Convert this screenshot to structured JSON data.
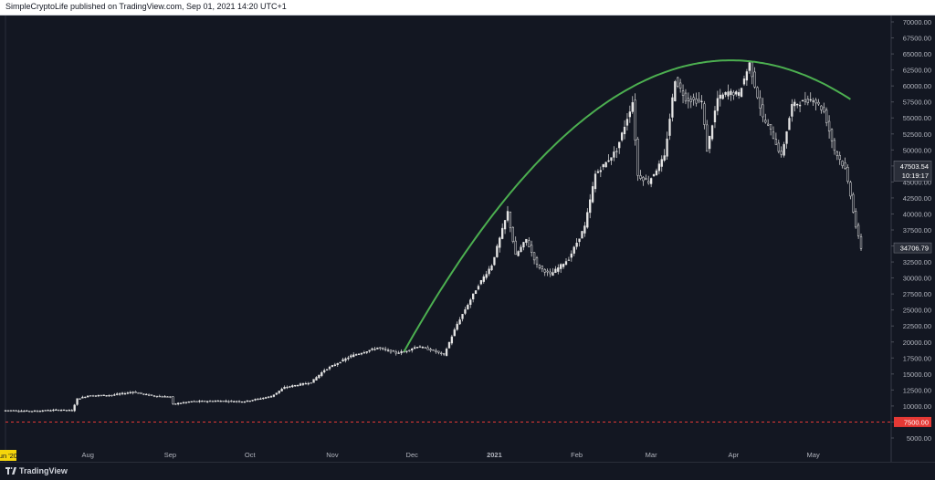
{
  "header": {
    "publish_text": "SimpleCryptoLife published on TradingView.com, Sep 01, 2021 14:20 UTC+1"
  },
  "footer": {
    "brand": "TradingView"
  },
  "colors": {
    "background": "#131722",
    "candle": "#e6e6e6",
    "arc": "#4caf50",
    "support_line": "#e53935",
    "axis_text": "#b2b5be",
    "date_highlight": "#f5d50b"
  },
  "chart_data": {
    "type": "candlestick",
    "ylim": [
      4000,
      71000
    ],
    "y_ticks": [
      "5000.00",
      "7500.00",
      "10000.00",
      "12500.00",
      "15000.00",
      "17500.00",
      "20000.00",
      "22500.00",
      "25000.00",
      "27500.00",
      "30000.00",
      "32500.00",
      "35000.00",
      "37500.00",
      "40000.00",
      "42500.00",
      "45000.00",
      "47500.00",
      "50000.00",
      "52500.00",
      "55000.00",
      "57500.00",
      "60000.00",
      "62500.00",
      "65000.00",
      "67500.00",
      "70000.00"
    ],
    "x_ticks": [
      {
        "label": "Jun '20",
        "day": 0,
        "highlight": true
      },
      {
        "label": "Aug",
        "day": 31
      },
      {
        "label": "Sep",
        "day": 62
      },
      {
        "label": "Oct",
        "day": 92
      },
      {
        "label": "Nov",
        "day": 123
      },
      {
        "label": "Dec",
        "day": 153
      },
      {
        "label": "2021",
        "day": 184,
        "bold": true
      },
      {
        "label": "Feb",
        "day": 215
      },
      {
        "label": "Mar",
        "day": 243
      },
      {
        "label": "Apr",
        "day": 274
      },
      {
        "label": "May",
        "day": 304
      }
    ],
    "price_labels": [
      {
        "value": 47503.54,
        "text": "47503.54",
        "sub": "10:19:17"
      },
      {
        "value": 34706.79,
        "text": "34706.79"
      },
      {
        "value": 7500,
        "text": "7500.00",
        "style": "red"
      }
    ],
    "horizontal_line": {
      "value": 7500
    },
    "arc": {
      "start": [
        150,
        18500
      ],
      "peak": [
        273,
        64000
      ],
      "end": [
        318,
        60000
      ]
    },
    "closes": [
      [
        0,
        9300
      ],
      [
        10,
        9200
      ],
      [
        20,
        9400
      ],
      [
        25,
        9300
      ],
      [
        27,
        11100
      ],
      [
        31,
        11600
      ],
      [
        40,
        11700
      ],
      [
        48,
        12200
      ],
      [
        55,
        11600
      ],
      [
        62,
        11400
      ],
      [
        63,
        10300
      ],
      [
        70,
        10700
      ],
      [
        80,
        10800
      ],
      [
        90,
        10700
      ],
      [
        100,
        11500
      ],
      [
        105,
        12900
      ],
      [
        115,
        13700
      ],
      [
        120,
        15600
      ],
      [
        130,
        17800
      ],
      [
        140,
        19100
      ],
      [
        147,
        18300
      ],
      [
        150,
        18500
      ],
      [
        155,
        19300
      ],
      [
        160,
        18800
      ],
      [
        165,
        18000
      ],
      [
        170,
        22800
      ],
      [
        178,
        28900
      ],
      [
        183,
        32000
      ],
      [
        189,
        40300
      ],
      [
        192,
        33500
      ],
      [
        196,
        36000
      ],
      [
        200,
        32000
      ],
      [
        205,
        30500
      ],
      [
        212,
        33000
      ],
      [
        218,
        38000
      ],
      [
        222,
        46200
      ],
      [
        226,
        48000
      ],
      [
        230,
        50000
      ],
      [
        236,
        57500
      ],
      [
        238,
        46000
      ],
      [
        242,
        45000
      ],
      [
        248,
        48900
      ],
      [
        252,
        61000
      ],
      [
        256,
        58000
      ],
      [
        262,
        57500
      ],
      [
        264,
        50000
      ],
      [
        268,
        58000
      ],
      [
        272,
        59000
      ],
      [
        276,
        58700
      ],
      [
        280,
        63500
      ],
      [
        285,
        55000
      ],
      [
        288,
        53000
      ],
      [
        292,
        49000
      ],
      [
        296,
        57000
      ],
      [
        300,
        57500
      ],
      [
        304,
        58000
      ],
      [
        308,
        56000
      ],
      [
        312,
        50000
      ],
      [
        316,
        47000
      ],
      [
        318,
        43000
      ],
      [
        320,
        38000
      ],
      [
        322,
        34700
      ]
    ]
  }
}
